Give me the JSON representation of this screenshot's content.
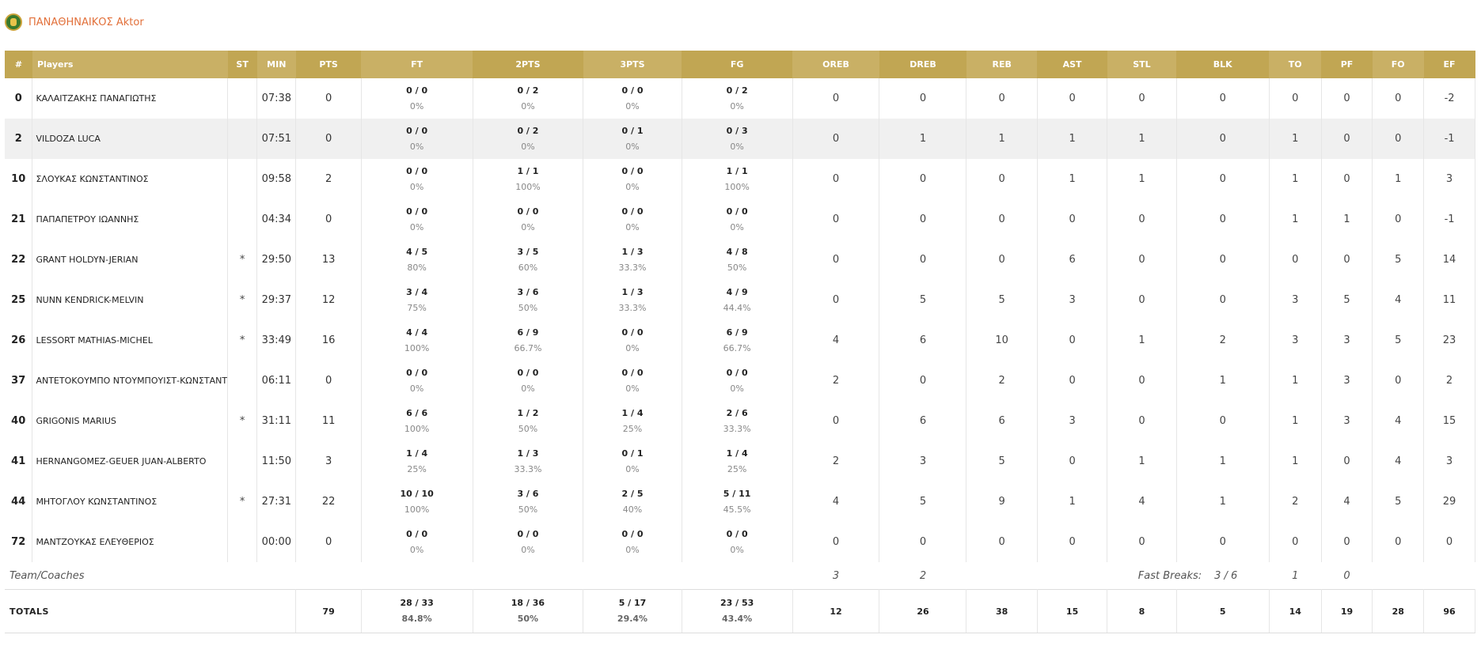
{
  "team": {
    "name": "ΠΑΝΑΘΗΝΑΙΚΟΣ Aktor"
  },
  "columns": [
    "#",
    "Players",
    "ST",
    "MIN",
    "PTS",
    "FT",
    "2PTS",
    "3PTS",
    "FG",
    "OREB",
    "DREB",
    "REB",
    "AST",
    "STL",
    "BLK",
    "TO",
    "PF",
    "FO",
    "EF"
  ],
  "players": [
    {
      "num": "0",
      "name": "ΚΑΛΑΙΤΖΑΚΗΣ ΠΑΝΑΓΙΩΤΗΣ",
      "st": "",
      "min": "07:38",
      "pts": "0",
      "ft": "0 / 0",
      "ft_pct": "0%",
      "p2": "0 / 2",
      "p2_pct": "0%",
      "p3": "0 / 0",
      "p3_pct": "0%",
      "fg": "0 / 2",
      "fg_pct": "0%",
      "oreb": "0",
      "dreb": "0",
      "reb": "0",
      "ast": "0",
      "stl": "0",
      "blk": "0",
      "to": "0",
      "pf": "0",
      "fo": "0",
      "ef": "-2"
    },
    {
      "num": "2",
      "name": "VILDOZA LUCA",
      "st": "",
      "min": "07:51",
      "pts": "0",
      "ft": "0 / 0",
      "ft_pct": "0%",
      "p2": "0 / 2",
      "p2_pct": "0%",
      "p3": "0 / 1",
      "p3_pct": "0%",
      "fg": "0 / 3",
      "fg_pct": "0%",
      "oreb": "0",
      "dreb": "1",
      "reb": "1",
      "ast": "1",
      "stl": "1",
      "blk": "0",
      "to": "1",
      "pf": "0",
      "fo": "0",
      "ef": "-1"
    },
    {
      "num": "10",
      "name": "ΣΛΟΥΚΑΣ ΚΩΝΣΤΑΝΤΙΝΟΣ",
      "st": "",
      "min": "09:58",
      "pts": "2",
      "ft": "0 / 0",
      "ft_pct": "0%",
      "p2": "1 / 1",
      "p2_pct": "100%",
      "p3": "0 / 0",
      "p3_pct": "0%",
      "fg": "1 / 1",
      "fg_pct": "100%",
      "oreb": "0",
      "dreb": "0",
      "reb": "0",
      "ast": "1",
      "stl": "1",
      "blk": "0",
      "to": "1",
      "pf": "0",
      "fo": "1",
      "ef": "3"
    },
    {
      "num": "21",
      "name": "ΠΑΠΑΠΕΤΡΟΥ ΙΩΑΝΝΗΣ",
      "st": "",
      "min": "04:34",
      "pts": "0",
      "ft": "0 / 0",
      "ft_pct": "0%",
      "p2": "0 / 0",
      "p2_pct": "0%",
      "p3": "0 / 0",
      "p3_pct": "0%",
      "fg": "0 / 0",
      "fg_pct": "0%",
      "oreb": "0",
      "dreb": "0",
      "reb": "0",
      "ast": "0",
      "stl": "0",
      "blk": "0",
      "to": "1",
      "pf": "1",
      "fo": "0",
      "ef": "-1"
    },
    {
      "num": "22",
      "name": "GRANT HOLDYN-JERIAN",
      "st": "*",
      "min": "29:50",
      "pts": "13",
      "ft": "4 / 5",
      "ft_pct": "80%",
      "p2": "3 / 5",
      "p2_pct": "60%",
      "p3": "1 / 3",
      "p3_pct": "33.3%",
      "fg": "4 / 8",
      "fg_pct": "50%",
      "oreb": "0",
      "dreb": "0",
      "reb": "0",
      "ast": "6",
      "stl": "0",
      "blk": "0",
      "to": "0",
      "pf": "0",
      "fo": "5",
      "ef": "14"
    },
    {
      "num": "25",
      "name": "NUNN KENDRICK-MELVIN",
      "st": "*",
      "min": "29:37",
      "pts": "12",
      "ft": "3 / 4",
      "ft_pct": "75%",
      "p2": "3 / 6",
      "p2_pct": "50%",
      "p3": "1 / 3",
      "p3_pct": "33.3%",
      "fg": "4 / 9",
      "fg_pct": "44.4%",
      "oreb": "0",
      "dreb": "5",
      "reb": "5",
      "ast": "3",
      "stl": "0",
      "blk": "0",
      "to": "3",
      "pf": "5",
      "fo": "4",
      "ef": "11"
    },
    {
      "num": "26",
      "name": "LESSORT MATHIAS-MICHEL",
      "st": "*",
      "min": "33:49",
      "pts": "16",
      "ft": "4 / 4",
      "ft_pct": "100%",
      "p2": "6 / 9",
      "p2_pct": "66.7%",
      "p3": "0 / 0",
      "p3_pct": "0%",
      "fg": "6 / 9",
      "fg_pct": "66.7%",
      "oreb": "4",
      "dreb": "6",
      "reb": "10",
      "ast": "0",
      "stl": "1",
      "blk": "2",
      "to": "3",
      "pf": "3",
      "fo": "5",
      "ef": "23"
    },
    {
      "num": "37",
      "name": "ΑΝΤΕΤΟΚΟΥΜΠΟ ΝΤΟΥΜΠΟΥΙΣΤ-ΚΩΝΣΤΑΝΤΙΝΟΣ",
      "st": "",
      "min": "06:11",
      "pts": "0",
      "ft": "0 / 0",
      "ft_pct": "0%",
      "p2": "0 / 0",
      "p2_pct": "0%",
      "p3": "0 / 0",
      "p3_pct": "0%",
      "fg": "0 / 0",
      "fg_pct": "0%",
      "oreb": "2",
      "dreb": "0",
      "reb": "2",
      "ast": "0",
      "stl": "0",
      "blk": "1",
      "to": "1",
      "pf": "3",
      "fo": "0",
      "ef": "2"
    },
    {
      "num": "40",
      "name": "GRIGONIS MARIUS",
      "st": "*",
      "min": "31:11",
      "pts": "11",
      "ft": "6 / 6",
      "ft_pct": "100%",
      "p2": "1 / 2",
      "p2_pct": "50%",
      "p3": "1 / 4",
      "p3_pct": "25%",
      "fg": "2 / 6",
      "fg_pct": "33.3%",
      "oreb": "0",
      "dreb": "6",
      "reb": "6",
      "ast": "3",
      "stl": "0",
      "blk": "0",
      "to": "1",
      "pf": "3",
      "fo": "4",
      "ef": "15"
    },
    {
      "num": "41",
      "name": "HERNANGOMEZ-GEUER JUAN-ALBERTO",
      "st": "",
      "min": "11:50",
      "pts": "3",
      "ft": "1 / 4",
      "ft_pct": "25%",
      "p2": "1 / 3",
      "p2_pct": "33.3%",
      "p3": "0 / 1",
      "p3_pct": "0%",
      "fg": "1 / 4",
      "fg_pct": "25%",
      "oreb": "2",
      "dreb": "3",
      "reb": "5",
      "ast": "0",
      "stl": "1",
      "blk": "1",
      "to": "1",
      "pf": "0",
      "fo": "4",
      "ef": "3"
    },
    {
      "num": "44",
      "name": "ΜΗΤΟΓΛΟΥ ΚΩΝΣΤΑΝΤΙΝΟΣ",
      "st": "*",
      "min": "27:31",
      "pts": "22",
      "ft": "10 / 10",
      "ft_pct": "100%",
      "p2": "3 / 6",
      "p2_pct": "50%",
      "p3": "2 / 5",
      "p3_pct": "40%",
      "fg": "5 / 11",
      "fg_pct": "45.5%",
      "oreb": "4",
      "dreb": "5",
      "reb": "9",
      "ast": "1",
      "stl": "4",
      "blk": "1",
      "to": "2",
      "pf": "4",
      "fo": "5",
      "ef": "29"
    },
    {
      "num": "72",
      "name": "ΜΑΝΤΖΟΥΚΑΣ ΕΛΕΥΘΕΡΙΟΣ",
      "st": "",
      "min": "00:00",
      "pts": "0",
      "ft": "0 / 0",
      "ft_pct": "0%",
      "p2": "0 / 0",
      "p2_pct": "0%",
      "p3": "0 / 0",
      "p3_pct": "0%",
      "fg": "0 / 0",
      "fg_pct": "0%",
      "oreb": "0",
      "dreb": "0",
      "reb": "0",
      "ast": "0",
      "stl": "0",
      "blk": "0",
      "to": "0",
      "pf": "0",
      "fo": "0",
      "ef": "0"
    }
  ],
  "team_coaches": {
    "label": "Team/Coaches",
    "oreb": "3",
    "dreb": "2",
    "fast_breaks_label": "Fast Breaks:",
    "fast_breaks": "3 / 6",
    "to": "1",
    "pf": "0"
  },
  "totals": {
    "label": "TOTALS",
    "pts": "79",
    "ft": "28 / 33",
    "ft_pct": "84.8%",
    "p2": "18 / 36",
    "p2_pct": "50%",
    "p3": "5 / 17",
    "p3_pct": "29.4%",
    "fg": "23 / 53",
    "fg_pct": "43.4%",
    "oreb": "12",
    "dreb": "26",
    "reb": "38",
    "ast": "15",
    "stl": "8",
    "blk": "5",
    "to": "14",
    "pf": "19",
    "fo": "28",
    "ef": "96"
  }
}
